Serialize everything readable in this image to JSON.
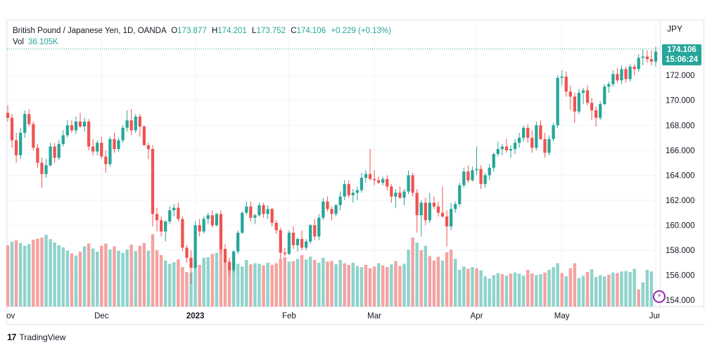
{
  "chart_data": {
    "type": "candlestick",
    "title": "British Pound / Japanese Yen, 1D, OANDA",
    "ohlc_readout": {
      "open_label": "O",
      "open": "173.877",
      "high_label": "H",
      "high": "174.201",
      "low_label": "L",
      "low": "173.752",
      "close_label": "C",
      "close": "174.106",
      "change": "+0.229 (+0.13%)"
    },
    "volume_label": "Vol",
    "volume_value": "36.105K",
    "currency": "JPY",
    "last_price": "174.106",
    "countdown": "15:06:24",
    "y_ticks": [
      154,
      156,
      158,
      160,
      162,
      164,
      166,
      168,
      170,
      172
    ],
    "y_tick_labels": [
      "154.000",
      "156.000",
      "158.000",
      "160.000",
      "162.000",
      "164.000",
      "166.000",
      "168.000",
      "170.000",
      "172.000"
    ],
    "ylim": [
      153.5,
      176.4
    ],
    "x_tick_labels": [
      {
        "label": "Nov",
        "bar": 0
      },
      {
        "label": "Dec",
        "bar": 22
      },
      {
        "label": "2023",
        "bar": 44
      },
      {
        "label": "Feb",
        "bar": 66
      },
      {
        "label": "Mar",
        "bar": 86
      },
      {
        "label": "Apr",
        "bar": 110
      },
      {
        "label": "May",
        "bar": 130
      },
      {
        "label": "Jun",
        "bar": 152
      }
    ],
    "candles": [
      [
        169.0,
        169.6,
        168.3,
        168.6
      ],
      [
        168.6,
        168.9,
        166.2,
        166.8
      ],
      [
        166.8,
        167.4,
        165.0,
        165.6
      ],
      [
        165.6,
        167.8,
        165.3,
        167.4
      ],
      [
        167.4,
        169.2,
        167.0,
        168.9
      ],
      [
        168.9,
        169.3,
        167.9,
        168.1
      ],
      [
        168.1,
        168.3,
        166.0,
        166.2
      ],
      [
        166.2,
        166.5,
        164.6,
        165.0
      ],
      [
        165.0,
        165.4,
        163.0,
        164.1
      ],
      [
        164.1,
        165.3,
        163.8,
        164.8
      ],
      [
        164.8,
        166.6,
        164.7,
        166.3
      ],
      [
        166.3,
        166.6,
        165.0,
        165.4
      ],
      [
        165.4,
        166.8,
        165.2,
        166.5
      ],
      [
        166.5,
        167.6,
        166.3,
        167.2
      ],
      [
        167.2,
        168.4,
        167.0,
        168.0
      ],
      [
        168.0,
        168.4,
        167.4,
        167.6
      ],
      [
        167.6,
        168.7,
        167.3,
        168.3
      ],
      [
        168.3,
        169.0,
        167.8,
        167.9
      ],
      [
        167.9,
        168.6,
        167.5,
        168.3
      ],
      [
        168.3,
        168.5,
        166.0,
        166.3
      ],
      [
        166.3,
        166.9,
        165.6,
        165.9
      ],
      [
        165.9,
        166.8,
        165.6,
        166.6
      ],
      [
        166.6,
        167.1,
        165.3,
        165.5
      ],
      [
        165.5,
        166.0,
        164.2,
        164.9
      ],
      [
        164.9,
        167.1,
        164.7,
        166.9
      ],
      [
        166.9,
        167.4,
        165.8,
        166.1
      ],
      [
        166.1,
        167.0,
        165.9,
        166.8
      ],
      [
        166.8,
        168.0,
        166.6,
        167.8
      ],
      [
        167.8,
        169.2,
        167.5,
        168.4
      ],
      [
        168.4,
        169.3,
        167.2,
        167.6
      ],
      [
        167.6,
        168.9,
        167.4,
        168.7
      ],
      [
        168.7,
        168.9,
        167.1,
        167.9
      ],
      [
        167.9,
        168.0,
        166.4,
        166.4
      ],
      [
        166.4,
        166.6,
        165.3,
        166.1
      ],
      [
        166.1,
        166.4,
        159.9,
        160.9
      ],
      [
        160.9,
        161.4,
        159.5,
        160.4
      ],
      [
        160.4,
        160.7,
        159.1,
        159.5
      ],
      [
        159.5,
        160.4,
        158.7,
        160.3
      ],
      [
        160.3,
        161.5,
        160.1,
        161.2
      ],
      [
        161.2,
        161.7,
        160.7,
        161.4
      ],
      [
        161.4,
        161.8,
        160.3,
        160.5
      ],
      [
        160.5,
        160.7,
        157.9,
        158.2
      ],
      [
        158.2,
        158.4,
        157.0,
        157.4
      ],
      [
        157.4,
        158.0,
        155.3,
        156.6
      ],
      [
        156.6,
        160.3,
        156.5,
        160.0
      ],
      [
        160.0,
        160.5,
        159.1,
        159.5
      ],
      [
        159.5,
        160.7,
        159.3,
        160.5
      ],
      [
        160.5,
        161.0,
        160.1,
        160.8
      ],
      [
        160.8,
        161.2,
        159.8,
        160.0
      ],
      [
        160.0,
        161.0,
        159.9,
        160.9
      ],
      [
        160.9,
        161.2,
        157.7,
        158.1
      ],
      [
        158.1,
        158.5,
        156.9,
        157.0
      ],
      [
        157.0,
        157.4,
        156.0,
        156.4
      ],
      [
        156.4,
        158.0,
        156.2,
        157.9
      ],
      [
        157.9,
        159.6,
        157.7,
        159.4
      ],
      [
        159.4,
        161.1,
        159.3,
        161.0
      ],
      [
        161.0,
        161.9,
        160.8,
        161.5
      ],
      [
        161.5,
        161.9,
        160.3,
        160.6
      ],
      [
        160.6,
        160.9,
        160.1,
        160.8
      ],
      [
        160.8,
        161.8,
        160.7,
        161.6
      ],
      [
        161.6,
        161.8,
        160.6,
        160.9
      ],
      [
        160.9,
        161.6,
        160.5,
        161.3
      ],
      [
        161.3,
        161.4,
        159.9,
        160.2
      ],
      [
        160.2,
        160.4,
        159.3,
        159.6
      ],
      [
        159.6,
        159.8,
        157.3,
        157.8
      ],
      [
        157.8,
        158.2,
        157.5,
        157.7
      ],
      [
        157.7,
        159.6,
        157.6,
        159.4
      ],
      [
        159.4,
        159.9,
        158.1,
        158.4
      ],
      [
        158.4,
        159.0,
        157.9,
        158.9
      ],
      [
        158.9,
        159.6,
        158.0,
        158.2
      ],
      [
        158.2,
        158.9,
        158.0,
        158.7
      ],
      [
        158.7,
        160.1,
        158.5,
        160.0
      ],
      [
        160.0,
        160.5,
        158.8,
        159.1
      ],
      [
        159.1,
        160.9,
        158.8,
        160.6
      ],
      [
        160.6,
        162.2,
        160.4,
        161.9
      ],
      [
        161.9,
        162.3,
        161.1,
        161.3
      ],
      [
        161.3,
        161.5,
        160.4,
        160.9
      ],
      [
        160.9,
        161.7,
        160.7,
        161.6
      ],
      [
        161.6,
        162.7,
        161.2,
        162.3
      ],
      [
        162.3,
        163.6,
        162.0,
        163.3
      ],
      [
        163.3,
        163.6,
        162.2,
        162.4
      ],
      [
        162.4,
        162.9,
        161.8,
        162.6
      ],
      [
        162.6,
        163.1,
        162.0,
        162.8
      ],
      [
        162.8,
        164.2,
        162.6,
        163.8
      ],
      [
        163.8,
        164.4,
        163.4,
        164.1
      ],
      [
        164.1,
        166.1,
        163.6,
        163.7
      ],
      [
        163.7,
        164.4,
        163.2,
        163.6
      ],
      [
        163.6,
        163.9,
        163.3,
        163.4
      ],
      [
        163.4,
        163.9,
        163.2,
        163.7
      ],
      [
        163.7,
        164.0,
        162.8,
        163.1
      ],
      [
        163.1,
        163.3,
        161.8,
        162.3
      ],
      [
        162.3,
        162.9,
        161.4,
        162.6
      ],
      [
        162.6,
        163.1,
        162.1,
        162.2
      ],
      [
        162.2,
        162.9,
        161.6,
        162.7
      ],
      [
        162.7,
        164.4,
        162.5,
        164.0
      ],
      [
        164.0,
        164.2,
        162.3,
        162.6
      ],
      [
        162.6,
        162.9,
        159.4,
        160.8
      ],
      [
        160.8,
        162.0,
        159.1,
        161.8
      ],
      [
        161.8,
        162.2,
        160.0,
        160.4
      ],
      [
        160.4,
        162.6,
        160.2,
        161.8
      ],
      [
        161.8,
        162.3,
        161.3,
        161.5
      ],
      [
        161.5,
        161.9,
        160.7,
        161.0
      ],
      [
        161.0,
        163.1,
        160.6,
        160.7
      ],
      [
        160.7,
        161.2,
        158.3,
        159.9
      ],
      [
        159.9,
        161.8,
        159.6,
        161.3
      ],
      [
        161.3,
        161.9,
        161.0,
        161.7
      ],
      [
        161.7,
        163.4,
        161.5,
        163.2
      ],
      [
        163.2,
        164.6,
        163.0,
        164.3
      ],
      [
        164.3,
        164.8,
        163.4,
        163.6
      ],
      [
        163.6,
        164.7,
        163.5,
        164.4
      ],
      [
        164.4,
        166.3,
        164.0,
        164.5
      ],
      [
        164.5,
        164.8,
        162.9,
        163.3
      ],
      [
        163.3,
        164.2,
        163.0,
        164.0
      ],
      [
        164.0,
        164.9,
        163.6,
        164.6
      ],
      [
        164.6,
        165.8,
        164.3,
        165.7
      ],
      [
        165.7,
        166.7,
        165.5,
        166.1
      ],
      [
        166.1,
        166.5,
        165.6,
        166.3
      ],
      [
        166.3,
        166.9,
        165.8,
        166.0
      ],
      [
        166.0,
        166.4,
        165.4,
        166.1
      ],
      [
        166.1,
        166.9,
        165.7,
        166.6
      ],
      [
        166.6,
        167.4,
        166.2,
        167.0
      ],
      [
        167.0,
        168.0,
        166.7,
        167.8
      ],
      [
        167.8,
        168.1,
        166.6,
        167.0
      ],
      [
        167.0,
        167.6,
        165.8,
        166.2
      ],
      [
        166.2,
        168.3,
        166.0,
        168.0
      ],
      [
        168.0,
        168.4,
        166.8,
        166.9
      ],
      [
        166.9,
        167.4,
        165.4,
        165.8
      ],
      [
        165.8,
        167.2,
        165.6,
        166.9
      ],
      [
        166.9,
        168.2,
        166.7,
        168.0
      ],
      [
        168.0,
        172.0,
        167.8,
        171.8
      ],
      [
        171.8,
        172.4,
        171.2,
        171.9
      ],
      [
        171.9,
        172.3,
        170.3,
        170.7
      ],
      [
        170.7,
        171.2,
        169.2,
        170.3
      ],
      [
        170.3,
        170.6,
        168.2,
        169.1
      ],
      [
        169.1,
        170.9,
        168.9,
        170.6
      ],
      [
        170.6,
        171.0,
        169.7,
        170.8
      ],
      [
        170.8,
        171.2,
        169.6,
        169.8
      ],
      [
        169.8,
        170.2,
        168.4,
        169.2
      ],
      [
        169.2,
        169.5,
        167.9,
        168.6
      ],
      [
        168.6,
        169.9,
        168.4,
        169.7
      ],
      [
        169.7,
        171.3,
        169.6,
        171.1
      ],
      [
        171.1,
        171.5,
        170.6,
        171.3
      ],
      [
        171.3,
        172.4,
        171.1,
        172.1
      ],
      [
        172.1,
        172.6,
        171.4,
        171.6
      ],
      [
        171.6,
        172.8,
        171.3,
        172.5
      ],
      [
        172.5,
        172.7,
        171.4,
        171.7
      ],
      [
        171.7,
        172.9,
        171.5,
        172.7
      ],
      [
        172.7,
        172.9,
        172.0,
        172.5
      ],
      [
        172.5,
        173.7,
        172.3,
        173.4
      ],
      [
        173.4,
        174.1,
        172.8,
        173.5
      ],
      [
        173.5,
        174.0,
        173.0,
        173.3
      ],
      [
        173.3,
        174.0,
        172.8,
        173.1
      ],
      [
        173.1,
        174.3,
        172.7,
        173.9
      ]
    ],
    "volumes": [
      [
        11.2,
        1
      ],
      [
        11.8,
        0
      ],
      [
        12.1,
        1
      ],
      [
        11.6,
        0
      ],
      [
        11.1,
        0
      ],
      [
        11.4,
        0
      ],
      [
        12.2,
        1
      ],
      [
        12.4,
        1
      ],
      [
        12.6,
        1
      ],
      [
        13.1,
        0
      ],
      [
        12.3,
        0
      ],
      [
        11.7,
        0
      ],
      [
        11.2,
        0
      ],
      [
        10.8,
        0
      ],
      [
        10.2,
        0
      ],
      [
        9.7,
        1
      ],
      [
        9.3,
        0
      ],
      [
        10.0,
        1
      ],
      [
        11.0,
        0
      ],
      [
        11.5,
        1
      ],
      [
        10.6,
        0
      ],
      [
        10.0,
        0
      ],
      [
        11.1,
        1
      ],
      [
        11.5,
        1
      ],
      [
        10.4,
        0
      ],
      [
        11.0,
        1
      ],
      [
        10.2,
        0
      ],
      [
        9.8,
        0
      ],
      [
        10.4,
        0
      ],
      [
        11.3,
        1
      ],
      [
        10.1,
        0
      ],
      [
        11.1,
        1
      ],
      [
        11.6,
        1
      ],
      [
        10.2,
        0
      ],
      [
        13.2,
        1
      ],
      [
        10.3,
        1
      ],
      [
        9.4,
        1
      ],
      [
        8.4,
        0
      ],
      [
        7.8,
        0
      ],
      [
        8.1,
        0
      ],
      [
        8.6,
        1
      ],
      [
        7.2,
        1
      ],
      [
        6.3,
        1
      ],
      [
        6.2,
        0
      ],
      [
        8.4,
        0
      ],
      [
        7.6,
        1
      ],
      [
        8.9,
        0
      ],
      [
        9.0,
        0
      ],
      [
        9.6,
        1
      ],
      [
        9.8,
        0
      ],
      [
        10.6,
        1
      ],
      [
        7.9,
        1
      ],
      [
        8.3,
        1
      ],
      [
        8.1,
        0
      ],
      [
        7.8,
        0
      ],
      [
        7.3,
        0
      ],
      [
        8.5,
        0
      ],
      [
        7.7,
        1
      ],
      [
        7.9,
        0
      ],
      [
        7.8,
        0
      ],
      [
        7.5,
        1
      ],
      [
        8.0,
        0
      ],
      [
        7.6,
        1
      ],
      [
        7.9,
        1
      ],
      [
        8.7,
        1
      ],
      [
        9.0,
        1
      ],
      [
        8.2,
        0
      ],
      [
        8.3,
        1
      ],
      [
        8.7,
        0
      ],
      [
        9.4,
        1
      ],
      [
        8.6,
        0
      ],
      [
        9.1,
        0
      ],
      [
        8.5,
        1
      ],
      [
        8.0,
        0
      ],
      [
        8.9,
        0
      ],
      [
        8.2,
        1
      ],
      [
        8.3,
        1
      ],
      [
        7.7,
        0
      ],
      [
        8.5,
        0
      ],
      [
        7.9,
        1
      ],
      [
        7.6,
        1
      ],
      [
        8.0,
        0
      ],
      [
        7.4,
        0
      ],
      [
        7.2,
        0
      ],
      [
        7.6,
        1
      ],
      [
        7.0,
        1
      ],
      [
        7.3,
        1
      ],
      [
        7.9,
        0
      ],
      [
        7.5,
        1
      ],
      [
        7.2,
        1
      ],
      [
        7.7,
        0
      ],
      [
        8.3,
        1
      ],
      [
        7.4,
        1
      ],
      [
        7.8,
        0
      ],
      [
        10.4,
        0
      ],
      [
        12.6,
        1
      ],
      [
        11.7,
        0
      ],
      [
        10.3,
        1
      ],
      [
        11.1,
        0
      ],
      [
        9.2,
        1
      ],
      [
        8.4,
        1
      ],
      [
        9.1,
        1
      ],
      [
        8.4,
        0
      ],
      [
        9.9,
        1
      ],
      [
        10.4,
        1
      ],
      [
        8.7,
        0
      ],
      [
        6.7,
        0
      ],
      [
        7.3,
        0
      ],
      [
        6.9,
        1
      ],
      [
        7.2,
        0
      ],
      [
        7.0,
        1
      ],
      [
        6.6,
        0
      ],
      [
        5.5,
        0
      ],
      [
        5.1,
        0
      ],
      [
        5.7,
        0
      ],
      [
        6.1,
        0
      ],
      [
        5.9,
        1
      ],
      [
        5.6,
        0
      ],
      [
        6.0,
        1
      ],
      [
        6.2,
        0
      ],
      [
        6.0,
        0
      ],
      [
        5.6,
        0
      ],
      [
        6.7,
        1
      ],
      [
        6.0,
        1
      ],
      [
        5.7,
        0
      ],
      [
        5.9,
        0
      ],
      [
        6.2,
        1
      ],
      [
        6.7,
        0
      ],
      [
        7.2,
        0
      ],
      [
        7.9,
        0
      ],
      [
        6.1,
        1
      ],
      [
        5.5,
        0
      ],
      [
        7.0,
        1
      ],
      [
        7.9,
        1
      ],
      [
        5.2,
        0
      ],
      [
        5.6,
        0
      ],
      [
        6.3,
        1
      ],
      [
        6.8,
        0
      ],
      [
        5.4,
        0
      ],
      [
        5.7,
        0
      ],
      [
        5.5,
        0
      ],
      [
        5.8,
        1
      ],
      [
        6.2,
        0
      ],
      [
        6.1,
        1
      ],
      [
        6.4,
        0
      ],
      [
        6.5,
        0
      ],
      [
        6.3,
        0
      ],
      [
        6.9,
        0
      ],
      [
        3.1,
        1
      ],
      [
        4.4,
        0
      ],
      [
        6.7,
        0
      ],
      [
        6.4,
        0
      ]
    ],
    "colors": {
      "up": "#26a69a",
      "down": "#ef5350",
      "up_vol": "#8fd3cb",
      "down_vol": "#f3a3a1",
      "grid": "#f0f3fa",
      "price_line": "#26a69a"
    }
  },
  "footer": {
    "brand_mark": "17",
    "brand_name": "TradingView"
  },
  "event_marker": "⚡"
}
